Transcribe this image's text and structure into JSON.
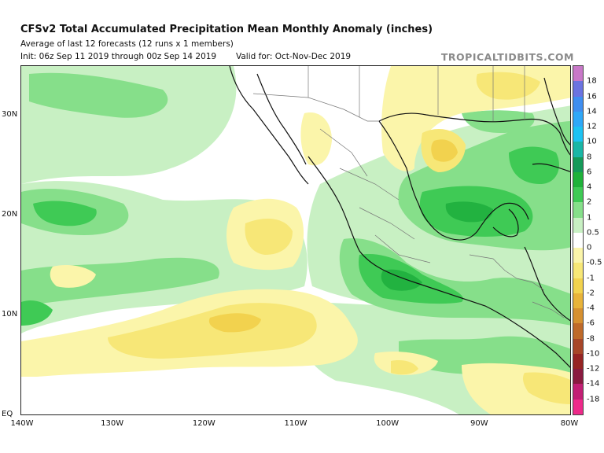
{
  "header": {
    "title": "CFSv2 Total Accumulated Precipitation Mean Monthly Anomaly (inches)",
    "subtitle": "Average of last 12 forecasts (12 runs x 1 members)",
    "init": "Init: 06z Sep 11 2019 through 00z Sep 14 2019",
    "valid": "Valid for: Oct-Nov-Dec 2019",
    "brand": "TROPICALTIDBITS.COM"
  },
  "map": {
    "lat_labels": [
      {
        "label": "30N",
        "lat": 30
      },
      {
        "label": "20N",
        "lat": 20
      },
      {
        "label": "10N",
        "lat": 10
      },
      {
        "label": "EQ",
        "lat": 0
      }
    ],
    "lon_labels": [
      {
        "label": "140W",
        "lon": -140
      },
      {
        "label": "130W",
        "lon": -130
      },
      {
        "label": "120W",
        "lon": -120
      },
      {
        "label": "110W",
        "lon": -110
      },
      {
        "label": "100W",
        "lon": -100
      },
      {
        "label": "90W",
        "lon": -90
      },
      {
        "label": "80W",
        "lon": -80
      }
    ],
    "colors": {
      "dry_light": "#fbf5aa",
      "dry_mid": "#f7e777",
      "dry_strong": "#f2d24e",
      "wet_light": "#c8f0c3",
      "wet_mid": "#86df8a",
      "wet_strong": "#3fca55",
      "wet_deep": "#22b240",
      "coast": "#111111",
      "border": "#777777"
    }
  },
  "colorbar": {
    "levels": [
      {
        "label": "18",
        "color": "#c878c8"
      },
      {
        "label": "16",
        "color": "#6b73e0"
      },
      {
        "label": "14",
        "color": "#3f8ef0"
      },
      {
        "label": "12",
        "color": "#2fa8f8"
      },
      {
        "label": "10",
        "color": "#1ec2f2"
      },
      {
        "label": "8",
        "color": "#1ab6a6"
      },
      {
        "label": "6",
        "color": "#159a59"
      },
      {
        "label": "4",
        "color": "#1fb23a"
      },
      {
        "label": "2",
        "color": "#3fca55"
      },
      {
        "label": "1",
        "color": "#86df8a"
      },
      {
        "label": "0.5",
        "color": "#c8f0c3"
      },
      {
        "label": "0",
        "color": "#ffffff"
      },
      {
        "label": "-0.5",
        "color": "#fbf5aa"
      },
      {
        "label": "-1",
        "color": "#f7e777"
      },
      {
        "label": "-2",
        "color": "#f2d24e"
      },
      {
        "label": "-4",
        "color": "#e8b33a"
      },
      {
        "label": "-6",
        "color": "#d69030"
      },
      {
        "label": "-8",
        "color": "#bf6a2a"
      },
      {
        "label": "-10",
        "color": "#a84628"
      },
      {
        "label": "-12",
        "color": "#962424"
      },
      {
        "label": "-14",
        "color": "#8a1a40"
      },
      {
        "label": "-18",
        "color": "#c21f74"
      },
      {
        "label": "",
        "color": "#ee2a8a"
      }
    ]
  }
}
